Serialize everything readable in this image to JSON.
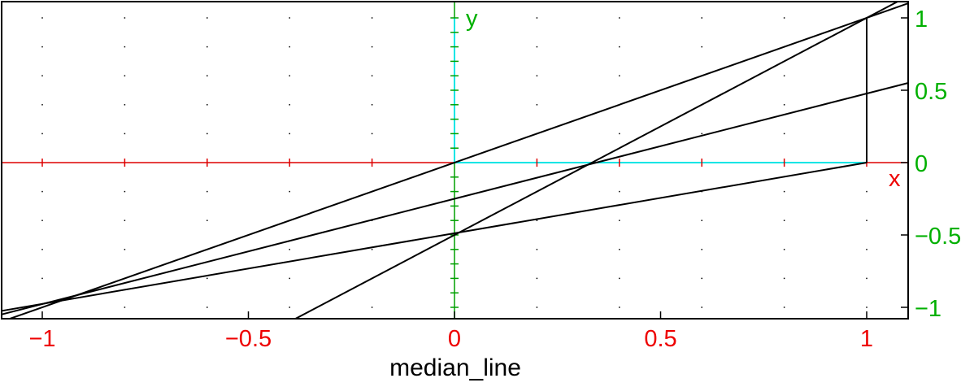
{
  "chart_data": {
    "type": "line",
    "title": "median_line",
    "xlabel": "x",
    "ylabel": "y",
    "xlim": [
      -1.1,
      1.1
    ],
    "ylim": [
      -1.1,
      1.1
    ],
    "x_ticks": [
      -1,
      -0.5,
      0,
      0.5,
      1
    ],
    "x_tick_labels": [
      "−1",
      "−0.5",
      "0",
      "0.5",
      "1"
    ],
    "y_ticks": [
      1,
      0.5,
      0,
      -0.5,
      -1
    ],
    "y_tick_labels": [
      "1",
      "0.5",
      "0",
      "−0.5",
      "−1"
    ],
    "grid": "dotted",
    "points": [
      {
        "x": 0,
        "y": 0
      },
      {
        "x": 1,
        "y": 1
      },
      {
        "x": 1,
        "y": 0
      },
      {
        "x": -1,
        "y": -1
      },
      {
        "x": 0,
        "y": -0.5
      }
    ],
    "lines": [
      {
        "x": [
          -1.1,
          1.1
        ],
        "y": [
          -1.1,
          1.1
        ]
      },
      {
        "x": [
          -1.1,
          1.1
        ],
        "y": [
          -1.05,
          0.55
        ]
      },
      {
        "x": [
          -0.4,
          1.1
        ],
        "y": [
          -1.1,
          1.15
        ]
      },
      {
        "x": [
          -1.1,
          1
        ],
        "y": [
          -1.025,
          0
        ]
      },
      {
        "x": [
          1,
          1
        ],
        "y": [
          0,
          1
        ]
      }
    ],
    "colors": {
      "x_axis": "#dd0000",
      "y_axis": "#00a000",
      "axis_positive": "#00e5e5",
      "lines": "#000000",
      "x_labels": "#ee0000",
      "y_labels": "#00b000"
    }
  }
}
